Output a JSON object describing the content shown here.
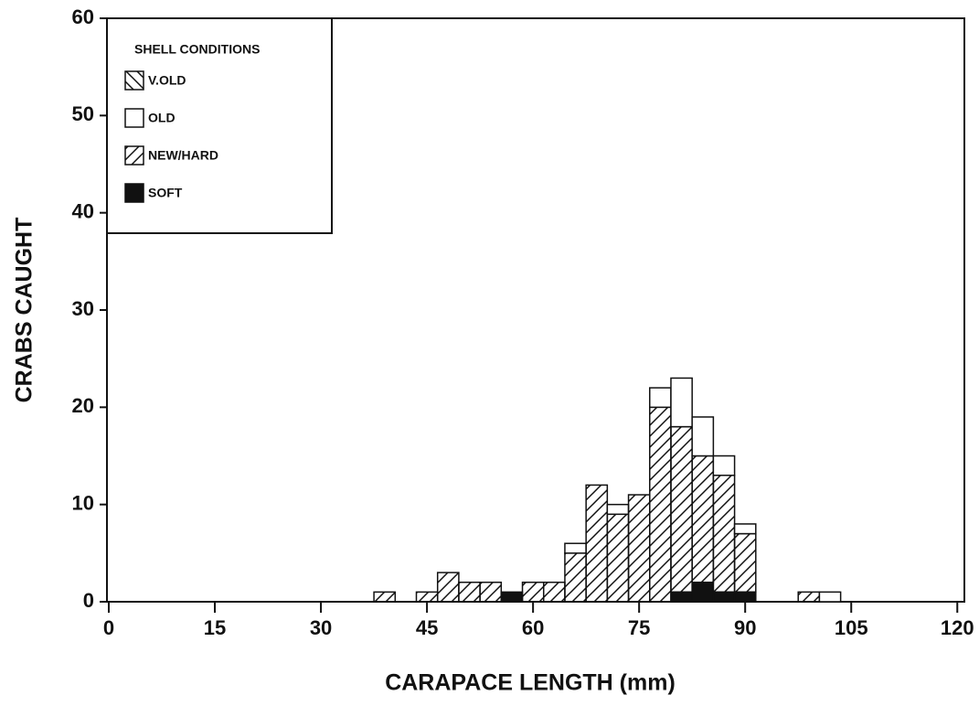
{
  "chart_data": {
    "type": "histogram",
    "xlabel": "CARAPACE LENGTH (mm)",
    "ylabel": "CRABS CAUGHT",
    "legend_title": "SHELL CONDITIONS",
    "legend": "upper left",
    "bins": [
      37.5,
      40.5,
      43.5,
      46.5,
      49.5,
      52.5,
      55.5,
      58.5,
      61.5,
      64.5,
      67.5,
      70.5,
      73.5,
      76.5,
      79.5,
      82.5,
      85.5,
      88.5,
      91.5,
      94.5,
      97.5,
      100.5,
      103.5
    ],
    "stacked": true,
    "series": [
      {
        "name": "V.OLD",
        "color": "#ffffff",
        "pattern": "backslash",
        "values": [
          0,
          0,
          0,
          0,
          0,
          0,
          0,
          0,
          0,
          0,
          0,
          0,
          0,
          0,
          0,
          0,
          0,
          0,
          0,
          0,
          0,
          0
        ]
      },
      {
        "name": "OLD",
        "color": "#ffffff",
        "pattern": "none",
        "values": [
          0,
          0,
          0,
          0,
          0,
          0,
          0,
          0,
          0,
          1,
          0,
          1,
          0,
          2,
          5,
          4,
          2,
          1,
          0,
          0,
          0,
          1
        ]
      },
      {
        "name": "NEW/HARD",
        "color": "#ffffff",
        "pattern": "slash",
        "values": [
          1,
          0,
          1,
          3,
          2,
          2,
          0,
          2,
          2,
          5,
          12,
          9,
          11,
          20,
          17,
          13,
          12,
          6,
          0,
          0,
          1,
          0
        ]
      },
      {
        "name": "SOFT",
        "color": "#111111",
        "pattern": "solid",
        "values": [
          0,
          0,
          0,
          0,
          0,
          0,
          1,
          0,
          0,
          0,
          0,
          0,
          0,
          0,
          1,
          2,
          1,
          1,
          0,
          0,
          0,
          0
        ]
      }
    ],
    "xlim": [
      0,
      121
    ],
    "ylim": [
      0,
      60
    ],
    "xticks": [
      0,
      15,
      30,
      45,
      60,
      75,
      90,
      105,
      120
    ],
    "yticks": [
      0,
      10,
      20,
      30,
      40,
      50,
      60
    ]
  }
}
